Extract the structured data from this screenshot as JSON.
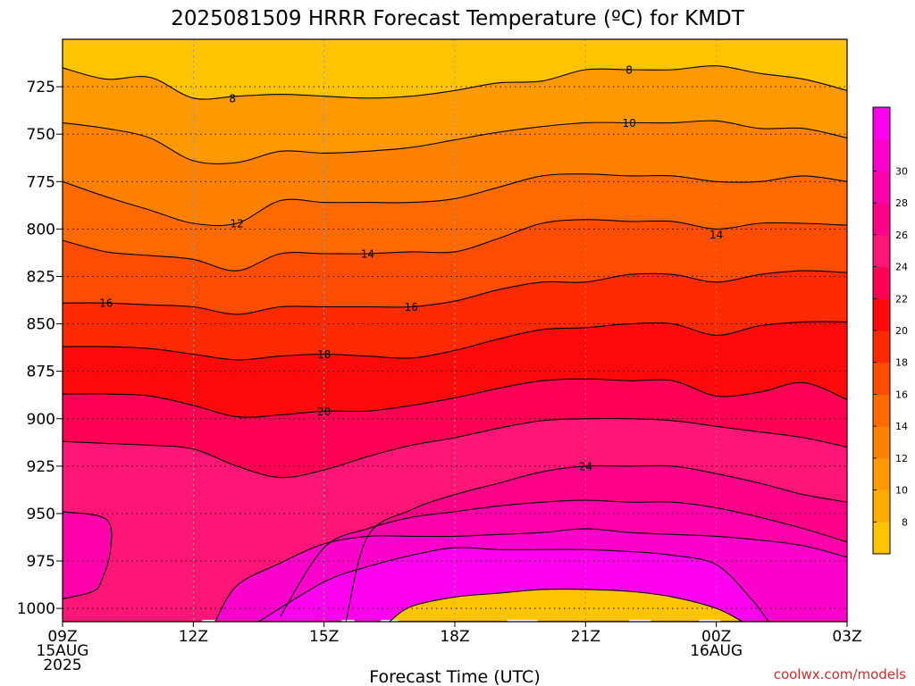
{
  "chart_data": {
    "type": "heatmap",
    "title": "2025081509 HRRR Forecast Temperature (ºC) for KMDT",
    "xlabel": "Forecast Time (UTC)",
    "ylabel": "",
    "credit": "coolwx.com/models",
    "x_ticks": [
      {
        "hours": 0,
        "labels": [
          "09Z",
          "15AUG",
          "2025"
        ]
      },
      {
        "hours": 3,
        "labels": [
          "12Z"
        ]
      },
      {
        "hours": 6,
        "labels": [
          "15Z"
        ]
      },
      {
        "hours": 9,
        "labels": [
          "18Z"
        ]
      },
      {
        "hours": 12,
        "labels": [
          "21Z"
        ]
      },
      {
        "hours": 15,
        "labels": [
          "00Z",
          "16AUG"
        ]
      },
      {
        "hours": 18,
        "labels": [
          "03Z"
        ]
      }
    ],
    "y_ticks": [
      725,
      750,
      775,
      800,
      825,
      850,
      875,
      900,
      925,
      950,
      975,
      1000
    ],
    "y_range_hpa": [
      1007,
      700
    ],
    "x_range_hours": [
      0,
      18
    ],
    "surface_pressure_hpa": 1006.5,
    "colorbar": {
      "levels": [
        6,
        8,
        10,
        12,
        14,
        16,
        18,
        20,
        22,
        24,
        26,
        28,
        30,
        32
      ],
      "labels": [
        8,
        10,
        12,
        14,
        16,
        18,
        20,
        22,
        24,
        26,
        28,
        30
      ],
      "colors": [
        "#ffc400",
        "#ffae00",
        "#ff9900",
        "#ff8100",
        "#ff6a00",
        "#ff4d00",
        "#ff2a00",
        "#ff0a0a",
        "#ff0055",
        "#ff1677",
        "#ff0088",
        "#ff00aa",
        "#ff00cc",
        "#ff00ee"
      ]
    },
    "series": [
      {
        "level": 8,
        "label": "8",
        "points": [
          [
            0,
            715
          ],
          [
            1,
            721
          ],
          [
            2,
            720
          ],
          [
            3,
            731
          ],
          [
            4,
            730
          ],
          [
            5,
            729
          ],
          [
            6,
            730
          ],
          [
            7,
            731
          ],
          [
            8,
            730
          ],
          [
            9,
            727
          ],
          [
            10,
            723
          ],
          [
            11,
            722
          ],
          [
            12,
            716
          ],
          [
            13,
            716
          ],
          [
            14,
            716
          ],
          [
            15,
            714
          ],
          [
            16,
            718
          ],
          [
            17,
            721
          ],
          [
            18,
            727
          ]
        ]
      },
      {
        "level": 10,
        "label": "10",
        "points": [
          [
            0,
            744
          ],
          [
            1,
            747
          ],
          [
            2,
            752
          ],
          [
            3,
            764
          ],
          [
            4,
            765
          ],
          [
            5,
            759
          ],
          [
            6,
            760
          ],
          [
            7,
            759
          ],
          [
            8,
            757
          ],
          [
            9,
            753
          ],
          [
            10,
            749
          ],
          [
            11,
            746
          ],
          [
            12,
            744
          ],
          [
            13,
            744
          ],
          [
            14,
            744
          ],
          [
            15,
            743
          ],
          [
            16,
            747
          ],
          [
            17,
            747
          ],
          [
            18,
            752
          ]
        ]
      },
      {
        "level": 12,
        "label": "12",
        "points": [
          [
            0,
            775
          ],
          [
            1,
            783
          ],
          [
            2,
            790
          ],
          [
            3,
            797
          ],
          [
            4,
            797
          ],
          [
            5,
            785
          ],
          [
            6,
            786
          ],
          [
            7,
            786
          ],
          [
            8,
            786
          ],
          [
            9,
            784
          ],
          [
            10,
            778
          ],
          [
            11,
            772
          ],
          [
            12,
            771
          ],
          [
            13,
            772
          ],
          [
            14,
            772
          ],
          [
            15,
            775
          ],
          [
            16,
            775
          ],
          [
            17,
            772
          ],
          [
            18,
            775
          ]
        ]
      },
      {
        "level": 14,
        "label": "14",
        "points": [
          [
            0,
            806
          ],
          [
            1,
            812
          ],
          [
            2,
            814
          ],
          [
            3,
            816
          ],
          [
            4,
            822
          ],
          [
            5,
            813
          ],
          [
            6,
            813
          ],
          [
            7,
            813
          ],
          [
            8,
            812
          ],
          [
            9,
            812
          ],
          [
            10,
            805
          ],
          [
            11,
            797
          ],
          [
            12,
            795
          ],
          [
            13,
            796
          ],
          [
            14,
            796
          ],
          [
            15,
            800
          ],
          [
            16,
            797
          ],
          [
            17,
            797
          ],
          [
            18,
            798
          ]
        ]
      },
      {
        "level": 16,
        "label": "16",
        "points": [
          [
            0,
            839
          ],
          [
            1,
            839
          ],
          [
            2,
            840
          ],
          [
            3,
            841
          ],
          [
            4,
            845
          ],
          [
            5,
            841
          ],
          [
            6,
            841
          ],
          [
            7,
            841
          ],
          [
            8,
            841
          ],
          [
            9,
            838
          ],
          [
            10,
            832
          ],
          [
            11,
            828
          ],
          [
            12,
            828
          ],
          [
            13,
            824
          ],
          [
            14,
            824
          ],
          [
            15,
            828
          ],
          [
            16,
            824
          ],
          [
            17,
            822
          ],
          [
            18,
            823
          ]
        ]
      },
      {
        "level": 18,
        "label": "18",
        "points": [
          [
            0,
            862
          ],
          [
            1,
            862
          ],
          [
            2,
            863
          ],
          [
            3,
            866
          ],
          [
            4,
            869
          ],
          [
            5,
            867
          ],
          [
            6,
            866
          ],
          [
            7,
            867
          ],
          [
            8,
            868
          ],
          [
            9,
            864
          ],
          [
            10,
            858
          ],
          [
            11,
            853
          ],
          [
            12,
            852
          ],
          [
            13,
            850
          ],
          [
            14,
            850
          ],
          [
            15,
            856
          ],
          [
            16,
            851
          ],
          [
            17,
            849
          ],
          [
            18,
            849
          ]
        ]
      },
      {
        "level": 20,
        "label": "20",
        "points": [
          [
            0,
            887
          ],
          [
            1,
            887
          ],
          [
            2,
            888
          ],
          [
            3,
            893
          ],
          [
            4,
            899
          ],
          [
            5,
            898
          ],
          [
            6,
            896
          ],
          [
            7,
            896
          ],
          [
            8,
            893
          ],
          [
            9,
            889
          ],
          [
            10,
            884
          ],
          [
            11,
            880
          ],
          [
            12,
            879
          ],
          [
            13,
            880
          ],
          [
            14,
            880
          ],
          [
            15,
            888
          ],
          [
            16,
            886
          ],
          [
            17,
            881
          ],
          [
            18,
            890
          ]
        ]
      },
      {
        "level": 22,
        "label": "",
        "points": [
          [
            0,
            912
          ],
          [
            1,
            913
          ],
          [
            2,
            914
          ],
          [
            3,
            916
          ],
          [
            4,
            925
          ],
          [
            5,
            931
          ],
          [
            6,
            927
          ],
          [
            7,
            920
          ],
          [
            8,
            914
          ],
          [
            9,
            910
          ],
          [
            10,
            905
          ],
          [
            11,
            901
          ],
          [
            12,
            900
          ],
          [
            13,
            900
          ],
          [
            14,
            901
          ],
          [
            15,
            904
          ],
          [
            16,
            907
          ],
          [
            17,
            910
          ],
          [
            18,
            915
          ]
        ]
      },
      {
        "level": 24,
        "label": "24",
        "points": [
          [
            6.5,
            1007
          ],
          [
            7,
            962
          ],
          [
            8,
            948
          ],
          [
            9,
            940
          ],
          [
            10,
            934
          ],
          [
            11,
            928
          ],
          [
            12,
            925
          ],
          [
            13,
            925
          ],
          [
            14,
            925
          ],
          [
            15,
            929
          ],
          [
            16,
            934
          ],
          [
            17,
            940
          ],
          [
            18,
            944
          ]
        ]
      },
      {
        "level": 26,
        "label": "",
        "points": [
          [
            5,
            1004
          ],
          [
            6,
            968
          ],
          [
            7,
            958
          ],
          [
            8,
            952
          ],
          [
            9,
            949
          ],
          [
            10,
            946
          ],
          [
            11,
            944
          ],
          [
            12,
            943
          ],
          [
            13,
            944
          ],
          [
            14,
            944
          ],
          [
            15,
            947
          ],
          [
            16,
            952
          ],
          [
            17,
            958
          ],
          [
            18,
            965
          ]
        ]
      },
      {
        "level": 28,
        "label": "",
        "points": [
          [
            3.5,
            1007
          ],
          [
            4,
            988
          ],
          [
            5,
            976
          ],
          [
            6,
            966
          ],
          [
            7,
            962
          ],
          [
            8,
            962
          ],
          [
            9,
            962
          ],
          [
            10,
            961
          ],
          [
            11,
            960
          ],
          [
            12,
            958
          ],
          [
            13,
            960
          ],
          [
            14,
            961
          ],
          [
            15,
            962
          ],
          [
            16,
            964
          ],
          [
            17,
            967
          ],
          [
            18,
            973
          ]
        ]
      },
      {
        "level": 30,
        "label": "",
        "points": [
          [
            4.5,
            1007
          ],
          [
            6,
            986
          ],
          [
            7,
            978
          ],
          [
            8,
            972
          ],
          [
            9,
            968
          ],
          [
            10,
            969
          ],
          [
            11,
            969
          ],
          [
            12,
            969
          ],
          [
            13,
            970
          ],
          [
            14,
            972
          ],
          [
            15,
            977
          ],
          [
            15.8,
            995
          ],
          [
            16.2,
            1007
          ]
        ]
      },
      {
        "level": 32,
        "label": "",
        "points": [
          [
            7.5,
            1007
          ],
          [
            8,
            999
          ],
          [
            9,
            994
          ],
          [
            10,
            992
          ],
          [
            11,
            990
          ],
          [
            12,
            990
          ],
          [
            13,
            991
          ],
          [
            14,
            994
          ],
          [
            15,
            1000
          ],
          [
            15.6,
            1007
          ]
        ]
      },
      {
        "level": 26,
        "label": "",
        "points": [
          [
            0,
            949
          ],
          [
            1,
            953
          ],
          [
            1.1,
            969
          ],
          [
            0.9,
            985
          ],
          [
            0.7,
            991
          ],
          [
            0,
            995
          ]
        ]
      }
    ],
    "contour_labels": [
      {
        "text": "8",
        "x": 3.9,
        "y": 731
      },
      {
        "text": "8",
        "x": 13.0,
        "y": 716
      },
      {
        "text": "10",
        "x": 13.0,
        "y": 744
      },
      {
        "text": "12",
        "x": 4.0,
        "y": 797
      },
      {
        "text": "14",
        "x": 7.0,
        "y": 813
      },
      {
        "text": "14",
        "x": 15.0,
        "y": 803
      },
      {
        "text": "16",
        "x": 1.0,
        "y": 839
      },
      {
        "text": "16",
        "x": 8.0,
        "y": 841
      },
      {
        "text": "18",
        "x": 6.0,
        "y": 866
      },
      {
        "text": "20",
        "x": 6.0,
        "y": 896
      },
      {
        "text": "24",
        "x": 12.0,
        "y": 925
      }
    ]
  }
}
